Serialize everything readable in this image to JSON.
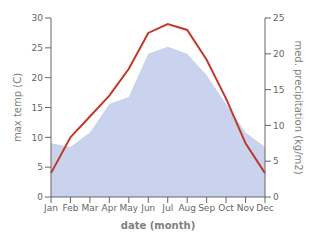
{
  "chart_data": {
    "type": "line",
    "xlabel": "date (month)",
    "ylabel": "max temp (C)",
    "y2label": "med. precipitation (kg/m2)",
    "categories": [
      "Jan",
      "Feb",
      "Mar",
      "Apr",
      "May",
      "Jun",
      "Jul",
      "Aug",
      "Sep",
      "Oct",
      "Nov",
      "Dec"
    ],
    "series": [
      {
        "type": "area",
        "axis": "y2",
        "color": "#b8c4e8",
        "values": [
          7.5,
          7,
          9,
          13,
          14,
          20,
          21,
          20,
          17,
          13,
          9,
          7
        ]
      },
      {
        "type": "line",
        "color": "#c0392b",
        "values": [
          4,
          10,
          13.5,
          17,
          21.5,
          27.5,
          29,
          28,
          23,
          16.5,
          9,
          4
        ]
      }
    ],
    "ylim": [
      0,
      30
    ],
    "yticks": [
      0,
      5,
      10,
      15,
      20,
      25,
      30
    ],
    "y2lim": [
      0,
      25
    ],
    "y2ticks": [
      0,
      5,
      10,
      15,
      20,
      25
    ],
    "grid": false
  }
}
